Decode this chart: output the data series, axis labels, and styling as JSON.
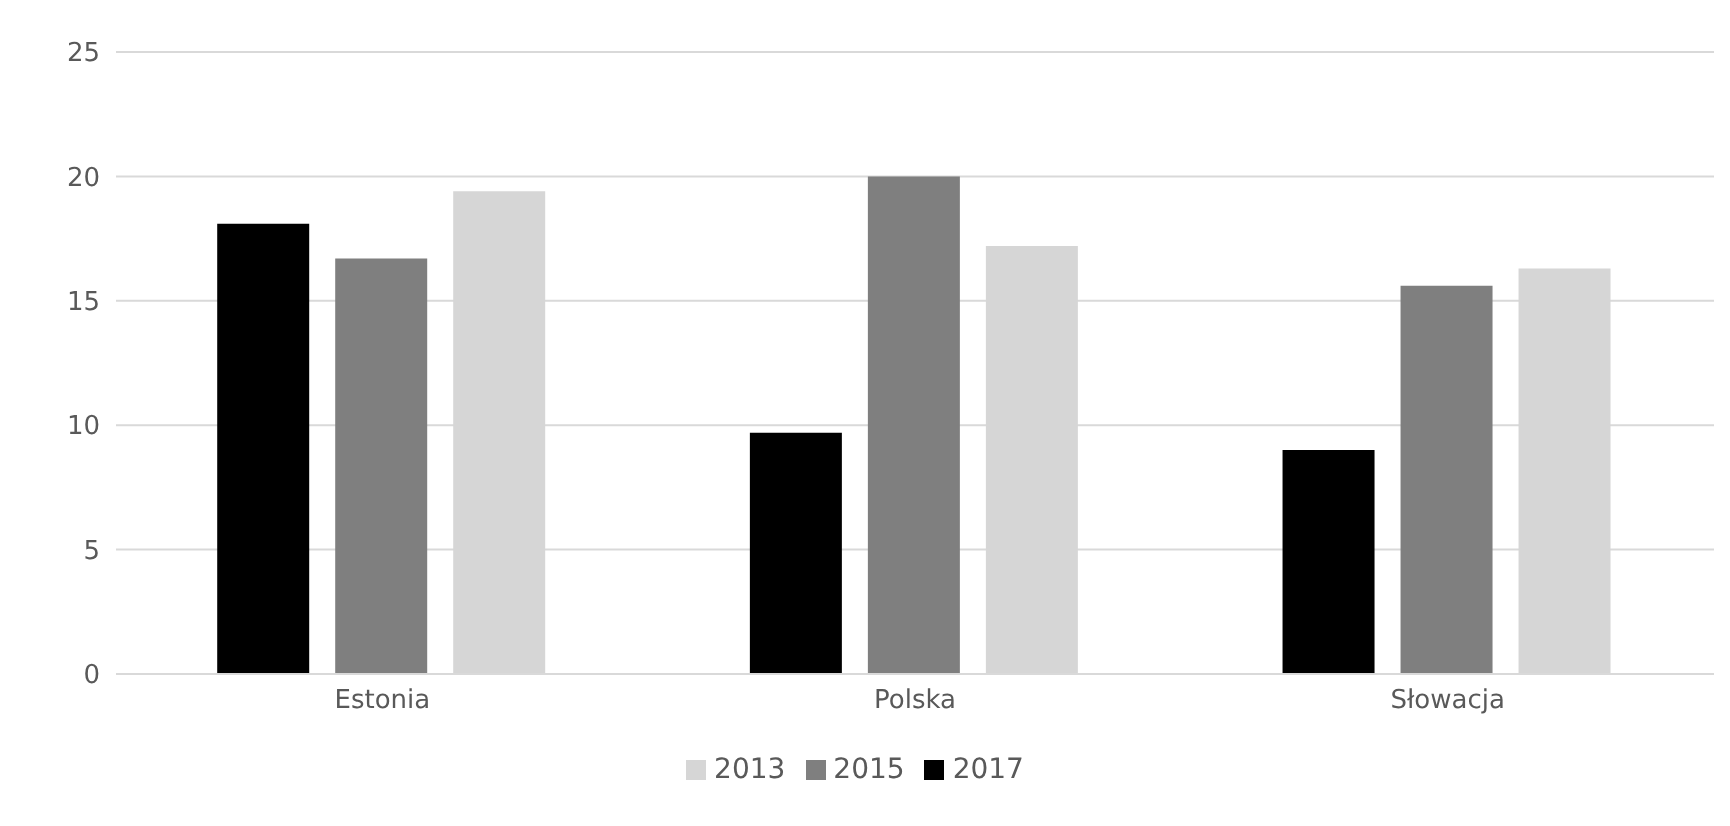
{
  "chart_data": {
    "type": "bar",
    "categories": [
      "Estonia",
      "Polska",
      "Słowacja"
    ],
    "series": [
      {
        "name": "2017",
        "color": "#000000",
        "values": [
          18.1,
          9.7,
          9.0
        ]
      },
      {
        "name": "2015",
        "color": "#7f7f7f",
        "values": [
          16.7,
          20.0,
          15.6
        ]
      },
      {
        "name": "2013",
        "color": "#d6d6d6",
        "values": [
          19.4,
          17.2,
          16.3
        ]
      }
    ],
    "ylim": [
      0,
      25
    ],
    "yticks": [
      0,
      5,
      10,
      15,
      20,
      25
    ],
    "grid": "y",
    "legend": "bottom"
  }
}
